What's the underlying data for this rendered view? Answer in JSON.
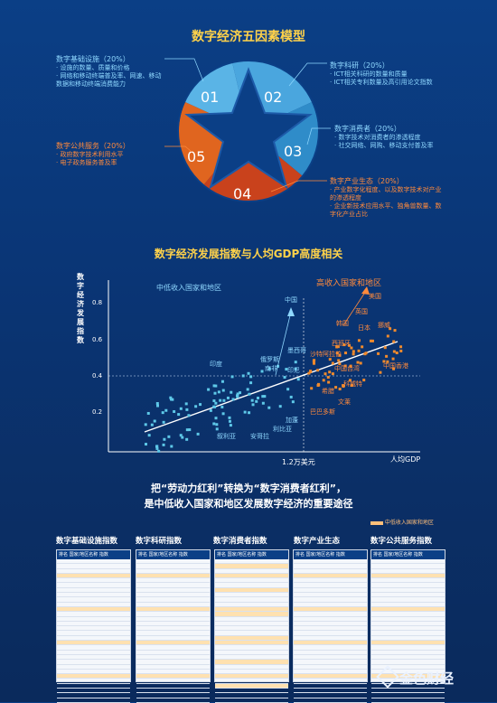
{
  "model": {
    "title": "数字经济五因素模型",
    "items": [
      {
        "num": "01",
        "color": "#5ab4e6",
        "heading": "数字基础设施（20%）",
        "bullets": [
          "设施的数量、质量和价格",
          "网络和移动终端普及率、网速、移动数据和移动终端消费能力"
        ]
      },
      {
        "num": "02",
        "color": "#5ab4e6",
        "heading": "数字科研（20%）",
        "bullets": [
          "ICT相关科研的数量和质量",
          "ICT相关专利数量及高引用论文指数"
        ]
      },
      {
        "num": "03",
        "color": "#3b9ed8",
        "heading": "数字消费者（20%）",
        "bullets": [
          "数字技术对消费者的渗透程度",
          "社交网络、网购、移动支付普及率"
        ]
      },
      {
        "num": "04",
        "color": "#d9491f",
        "heading": "数字产业生态（20%）",
        "bullets": [
          "产业数字化程度、以及数字技术对产业的渗透程度",
          "企业新技术应用水平、独角兽数量、数字化产业占比"
        ]
      },
      {
        "num": "05",
        "color": "#e8621f",
        "heading": "数字公共服务（20%）",
        "bullets": [
          "政府数字技术利用水平",
          "电子政务服务普及率"
        ]
      }
    ]
  },
  "scatter": {
    "title": "数字经济发展指数与人均GDP高度相关",
    "ylabel": "数字经济发展指数",
    "xlabel": "人均GDP",
    "threshold_label": "1.2万美元",
    "middle_label": "中低收入国家和地区",
    "high_label": "高收入国家和地区",
    "yticks": [
      "0.8",
      "0.6",
      "0.4",
      "0.2"
    ],
    "countries": [
      "中国",
      "美国",
      "英国",
      "日本",
      "韩国",
      "挪威",
      "西班牙",
      "墨西哥",
      "沙特阿拉伯",
      "中国台湾",
      "中国香港",
      "印度",
      "俄罗斯",
      "南非",
      "印尼",
      "加蓬",
      "利比亚",
      "叙利亚",
      "安哥拉",
      "科威特",
      "希腊",
      "文莱",
      "巴巴多斯"
    ]
  },
  "chart_data": {
    "type": "scatter",
    "title": "数字经济发展指数与人均GDP高度相关",
    "xlabel": "人均GDP",
    "ylabel": "数字经济发展指数",
    "ylim": [
      0,
      0.9
    ],
    "yticks": [
      0.2,
      0.4,
      0.6,
      0.8
    ],
    "threshold_x_label": "1.2万美元",
    "series": [
      {
        "name": "中低收入国家和地区",
        "color": "#5ec8e8"
      },
      {
        "name": "高收入国家和地区",
        "color": "#f08a2c"
      }
    ]
  },
  "slogan": {
    "line1": "把“劳动力红利”转换为“数字消费者红利”，",
    "line2": "是中低收入国家和地区发展数字经济的重要途径",
    "legend": "中低收入国家和地区"
  },
  "tables": [
    {
      "title": "数字基础设施指数",
      "hdr": "排名  国家/地区名称  指数"
    },
    {
      "title": "数字科研指数",
      "hdr": "排名  国家/地区名称  指数"
    },
    {
      "title": "数字消费者指数",
      "hdr": "排名  国家/地区名称  指数"
    },
    {
      "title": "数字产业生态",
      "hdr": "排名  国家/地区名称  指数"
    },
    {
      "title": "数字公共服务指数",
      "hdr": "排名  国家/地区名称  指数"
    }
  ],
  "watermark": "金色财经"
}
